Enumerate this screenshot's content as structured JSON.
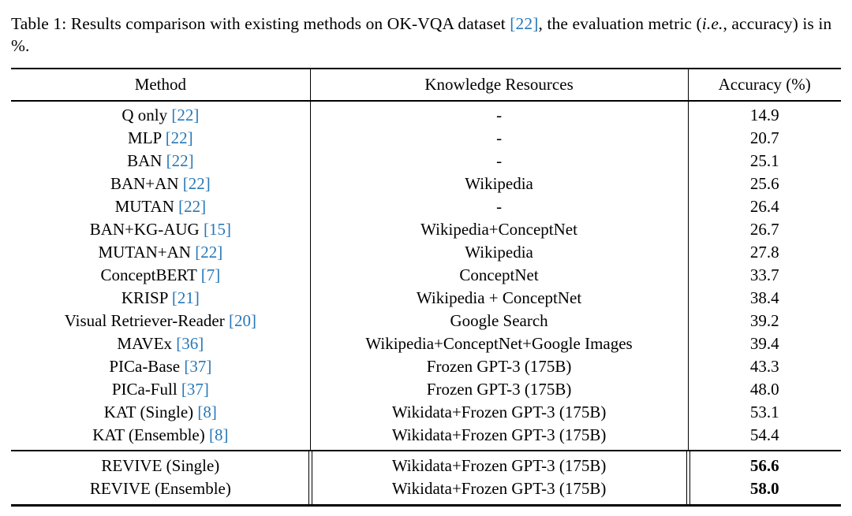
{
  "caption": {
    "part1": "Table 1: Results comparison with existing methods on OK-VQA dataset ",
    "cite1": "[22]",
    "part2": ", the evaluation metric (",
    "italic": "i.e.",
    "part3": ", accuracy) is in %."
  },
  "colors": {
    "citation_blue": "#2878b8",
    "text": "#000000",
    "background": "#ffffff"
  },
  "table": {
    "headers": [
      "Method",
      "Knowledge Resources",
      "Accuracy (%)"
    ],
    "rows": [
      {
        "method": "Q only",
        "cite": "[22]",
        "resources": "-",
        "accuracy": "14.9"
      },
      {
        "method": "MLP",
        "cite": "[22]",
        "resources": "-",
        "accuracy": "20.7"
      },
      {
        "method": "BAN",
        "cite": "[22]",
        "resources": "-",
        "accuracy": "25.1"
      },
      {
        "method": "BAN+AN",
        "cite": "[22]",
        "resources": "Wikipedia",
        "accuracy": "25.6"
      },
      {
        "method": "MUTAN",
        "cite": "[22]",
        "resources": "-",
        "accuracy": "26.4"
      },
      {
        "method": "BAN+KG-AUG",
        "cite": "[15]",
        "resources": "Wikipedia+ConceptNet",
        "accuracy": "26.7"
      },
      {
        "method": "MUTAN+AN",
        "cite": "[22]",
        "resources": "Wikipedia",
        "accuracy": "27.8"
      },
      {
        "method": "ConceptBERT",
        "cite": "[7]",
        "resources": "ConceptNet",
        "accuracy": "33.7"
      },
      {
        "method": "KRISP",
        "cite": "[21]",
        "resources": "Wikipedia + ConceptNet",
        "accuracy": "38.4"
      },
      {
        "method": "Visual Retriever-Reader",
        "cite": "[20]",
        "resources": "Google Search",
        "accuracy": "39.2"
      },
      {
        "method": "MAVEx",
        "cite": "[36]",
        "resources": "Wikipedia+ConceptNet+Google Images",
        "accuracy": "39.4"
      },
      {
        "method": "PICa-Base",
        "cite": "[37]",
        "resources": "Frozen GPT-3 (175B)",
        "accuracy": "43.3"
      },
      {
        "method": "PICa-Full",
        "cite": "[37]",
        "resources": "Frozen GPT-3 (175B)",
        "accuracy": "48.0"
      },
      {
        "method": "KAT (Single)",
        "cite": "[8]",
        "resources": "Wikidata+Frozen GPT-3 (175B)",
        "accuracy": "53.1"
      },
      {
        "method": "KAT (Ensemble)",
        "cite": "[8]",
        "resources": "Wikidata+Frozen GPT-3 (175B)",
        "accuracy": "54.4"
      }
    ],
    "highlight_rows": [
      {
        "method": "REVIVE (Single)",
        "cite": "",
        "resources": "Wikidata+Frozen GPT-3 (175B)",
        "accuracy": "56.6",
        "bold": true
      },
      {
        "method": "REVIVE (Ensemble)",
        "cite": "",
        "resources": "Wikidata+Frozen GPT-3 (175B)",
        "accuracy": "58.0",
        "bold": true
      }
    ]
  }
}
